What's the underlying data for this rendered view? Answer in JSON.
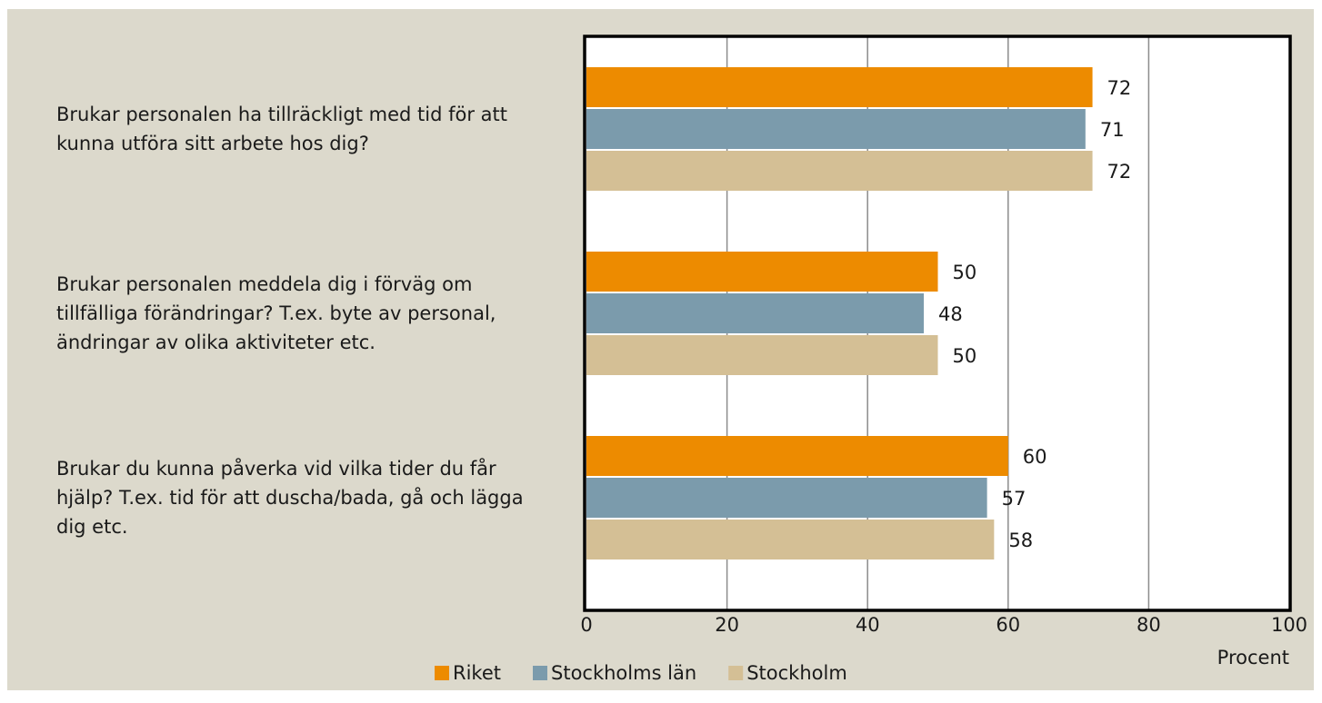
{
  "chart_data": {
    "type": "bar",
    "orientation": "horizontal",
    "categories": [
      "Brukar personalen ha tillräckligt med tid för att kunna utföra sitt arbete hos dig?",
      "Brukar personalen meddela dig i förväg om tillfälliga förändringar? T.ex. byte av personal, ändringar av olika aktiviteter etc.",
      "Brukar du kunna påverka vid vilka tider du får hjälp? T.ex. tid för att duscha/bada, gå och lägga dig etc."
    ],
    "series": [
      {
        "name": "Riket",
        "color": "#ed8b00",
        "values": [
          72,
          50,
          60
        ]
      },
      {
        "name": "Stockholms län",
        "color": "#7b9bac",
        "values": [
          71,
          48,
          57
        ]
      },
      {
        "name": "Stockholm",
        "color": "#d4bf95",
        "values": [
          72,
          50,
          58
        ]
      }
    ],
    "x_label": "Procent",
    "xlim": [
      0,
      100
    ],
    "xticks": [
      0,
      20,
      40,
      60,
      80,
      100
    ],
    "grid": true,
    "legend": "bottom"
  }
}
